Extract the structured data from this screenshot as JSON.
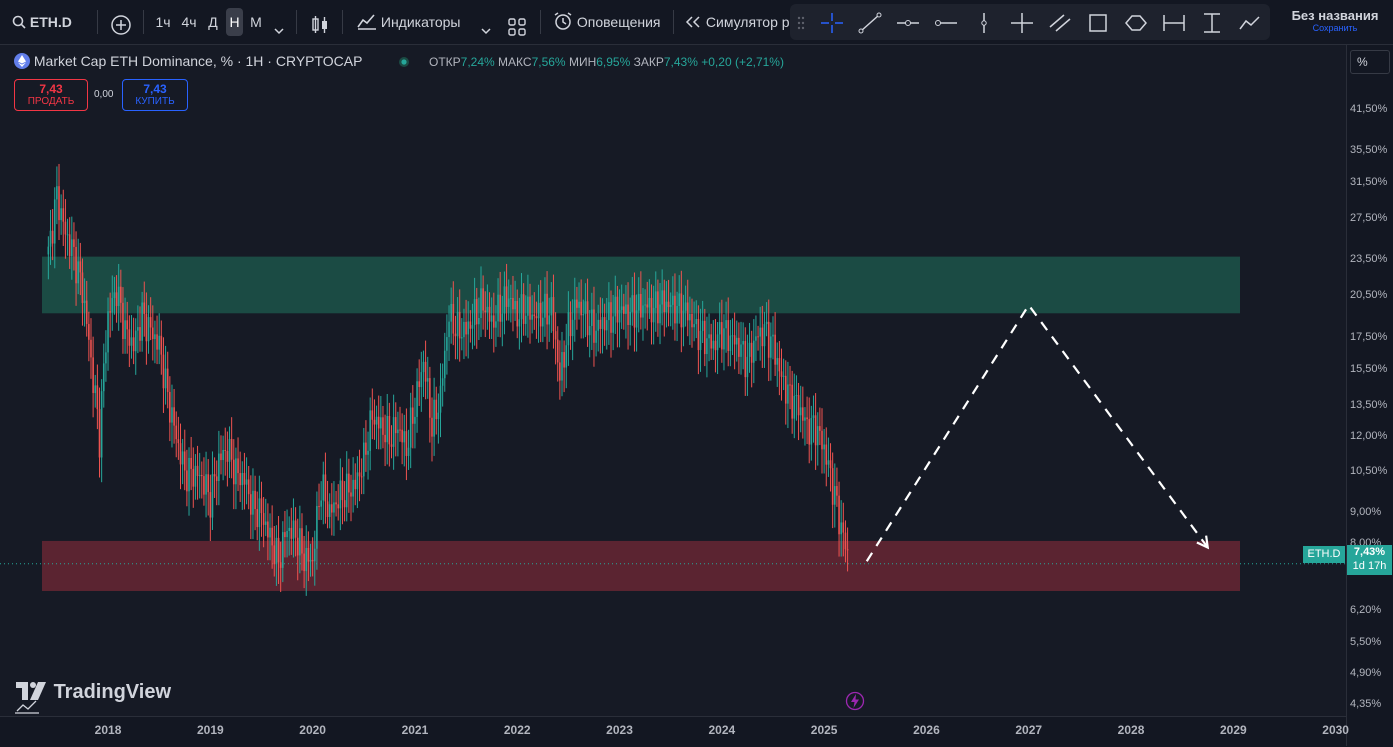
{
  "toolbar": {
    "symbol": "ETH.D",
    "intervals": [
      "1ч",
      "4ч",
      "Д",
      "Н",
      "М"
    ],
    "active_interval": "Н",
    "indicators_label": "Индикаторы",
    "alerts_label": "Оповещения",
    "simulator_label": "Симулятор р",
    "layout_title": "Без названия",
    "layout_save": "Сохранить"
  },
  "legend": {
    "title": "Market Cap ETH Dominance, % · 1Н · CRYPTOCAP",
    "open_label": "ОТКР",
    "open": "7,24%",
    "high_label": "МАКС",
    "high": "7,56%",
    "low_label": "МИН",
    "low": "6,95%",
    "close_label": "ЗАКР",
    "close": "7,43%",
    "change": "+0,20 (+2,71%)"
  },
  "trade": {
    "sell_price": "7,43",
    "sell_label": "ПРОДАТЬ",
    "spread": "0,00",
    "buy_price": "7,43",
    "buy_label": "КУПИТЬ"
  },
  "price_axis": {
    "unit": "%",
    "ticks": [
      "41,50%",
      "35,50%",
      "31,50%",
      "27,50%",
      "23,50%",
      "20,50%",
      "17,50%",
      "15,50%",
      "13,50%",
      "12,00%",
      "10,50%",
      "9,00%",
      "8,00%",
      "6,20%",
      "5,50%",
      "4,90%",
      "4,35%"
    ],
    "current_symbol": "ETH.D",
    "current_value": "7,43%",
    "countdown": "1d 17h"
  },
  "time_axis": {
    "ticks": [
      "2018",
      "2019",
      "2020",
      "2021",
      "2022",
      "2023",
      "2024",
      "2025",
      "2026",
      "2027",
      "2028",
      "2029",
      "2030"
    ]
  },
  "branding": "TradingView",
  "colors": {
    "up": "#26a69a",
    "down": "#ef5350",
    "resistance_zone": "#1b4b44",
    "support_zone": "#5b2431",
    "background": "#161a25"
  },
  "chart_data": {
    "type": "candlestick",
    "symbol": "ETH.D",
    "timeframe": "1W",
    "y_scale": "log",
    "x_range": [
      "2017-06",
      "2030-01"
    ],
    "y_range": [
      4.2,
      45
    ],
    "close_series": [
      [
        "2017-06",
        24
      ],
      [
        "2017-07",
        30
      ],
      [
        "2017-08",
        26
      ],
      [
        "2017-09",
        24
      ],
      [
        "2017-10",
        21
      ],
      [
        "2017-11",
        16
      ],
      [
        "2017-12",
        12
      ],
      [
        "2018-01",
        19
      ],
      [
        "2018-02",
        21
      ],
      [
        "2018-03",
        18
      ],
      [
        "2018-04",
        17
      ],
      [
        "2018-05",
        19
      ],
      [
        "2018-06",
        18
      ],
      [
        "2018-07",
        17
      ],
      [
        "2018-08",
        14
      ],
      [
        "2018-09",
        12
      ],
      [
        "2018-10",
        10.5
      ],
      [
        "2018-11",
        10.5
      ],
      [
        "2018-12",
        10.3
      ],
      [
        "2019-01",
        9.5
      ],
      [
        "2019-02",
        11
      ],
      [
        "2019-03",
        11.5
      ],
      [
        "2019-04",
        10.5
      ],
      [
        "2019-05",
        10.2
      ],
      [
        "2019-06",
        9.2
      ],
      [
        "2019-07",
        9
      ],
      [
        "2019-08",
        8.2
      ],
      [
        "2019-09",
        7.5
      ],
      [
        "2019-10",
        8.5
      ],
      [
        "2019-11",
        8.3
      ],
      [
        "2019-12",
        7.6
      ],
      [
        "2020-01",
        7.5
      ],
      [
        "2020-02",
        10
      ],
      [
        "2020-03",
        9
      ],
      [
        "2020-04",
        9.5
      ],
      [
        "2020-05",
        9.8
      ],
      [
        "2020-06",
        10
      ],
      [
        "2020-07",
        11
      ],
      [
        "2020-08",
        13
      ],
      [
        "2020-09",
        12.5
      ],
      [
        "2020-10",
        12
      ],
      [
        "2020-11",
        12.5
      ],
      [
        "2020-12",
        11.5
      ],
      [
        "2021-01",
        13.5
      ],
      [
        "2021-02",
        16
      ],
      [
        "2021-03",
        12.5
      ],
      [
        "2021-04",
        14
      ],
      [
        "2021-05",
        19
      ],
      [
        "2021-06",
        18
      ],
      [
        "2021-07",
        18
      ],
      [
        "2021-08",
        19
      ],
      [
        "2021-09",
        20
      ],
      [
        "2021-10",
        18.5
      ],
      [
        "2021-11",
        19.5
      ],
      [
        "2021-12",
        20.5
      ],
      [
        "2022-01",
        19
      ],
      [
        "2022-02",
        19.5
      ],
      [
        "2022-03",
        19
      ],
      [
        "2022-04",
        19.2
      ],
      [
        "2022-05",
        19.5
      ],
      [
        "2022-06",
        15
      ],
      [
        "2022-07",
        18
      ],
      [
        "2022-08",
        20
      ],
      [
        "2022-09",
        19
      ],
      [
        "2022-10",
        18
      ],
      [
        "2022-11",
        18.5
      ],
      [
        "2022-12",
        19
      ],
      [
        "2023-01",
        19.5
      ],
      [
        "2023-02",
        19.2
      ],
      [
        "2023-03",
        19.5
      ],
      [
        "2023-04",
        19.8
      ],
      [
        "2023-05",
        19.5
      ],
      [
        "2023-06",
        20
      ],
      [
        "2023-07",
        19.8
      ],
      [
        "2023-08",
        19.5
      ],
      [
        "2023-09",
        19.2
      ],
      [
        "2023-10",
        18
      ],
      [
        "2023-11",
        17.5
      ],
      [
        "2023-12",
        17
      ],
      [
        "2024-01",
        18
      ],
      [
        "2024-02",
        17.5
      ],
      [
        "2024-03",
        17
      ],
      [
        "2024-04",
        16
      ],
      [
        "2024-05",
        17.5
      ],
      [
        "2024-06",
        18
      ],
      [
        "2024-07",
        17
      ],
      [
        "2024-08",
        15
      ],
      [
        "2024-09",
        14
      ],
      [
        "2024-10",
        13.5
      ],
      [
        "2024-11",
        12.5
      ],
      [
        "2024-12",
        12.5
      ],
      [
        "2025-01",
        11.5
      ],
      [
        "2025-02",
        10
      ],
      [
        "2025-03",
        8.5
      ],
      [
        "2025-04",
        7.43
      ]
    ],
    "zones": [
      {
        "name": "resistance",
        "from": 19.2,
        "to": 23.8,
        "x_start": "2017-06",
        "x_end": "2029-01"
      },
      {
        "name": "support",
        "from": 6.7,
        "to": 8.1,
        "x_start": "2017-06",
        "x_end": "2029-01"
      }
    ],
    "projection": [
      [
        "2025-06",
        7.5
      ],
      [
        "2027-01",
        19.8
      ],
      [
        "2028-10",
        7.9
      ]
    ],
    "last_price": 7.43
  }
}
